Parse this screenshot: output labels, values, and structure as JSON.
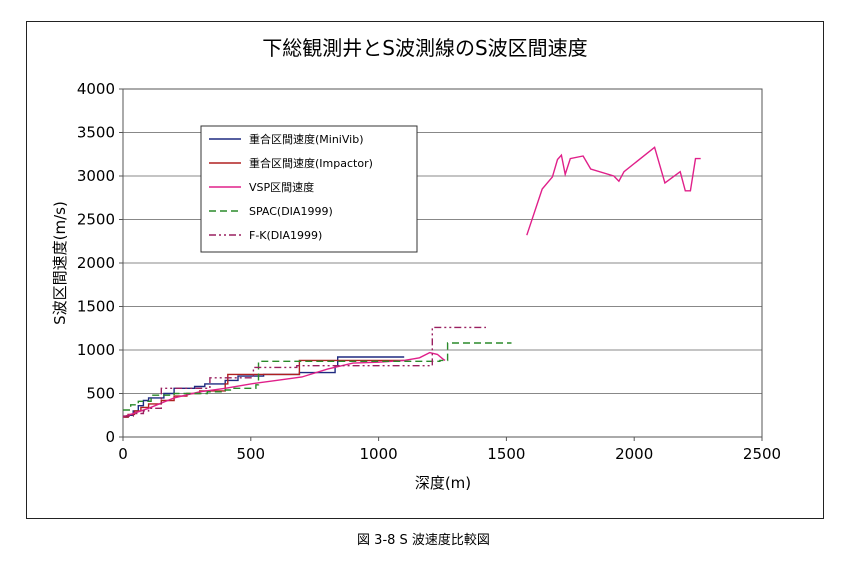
{
  "caption": "図 3-8 S 波速度比較図",
  "chart_data": {
    "type": "line",
    "title": "下総観測井とS波測線のS波区間速度",
    "xlabel": "深度(m)",
    "ylabel": "S波区間速度(m/s)",
    "xlim": [
      0,
      2500
    ],
    "ylim": [
      0,
      4000
    ],
    "xticks": [
      0,
      500,
      1000,
      1500,
      2000,
      2500
    ],
    "yticks": [
      0,
      500,
      1000,
      1500,
      2000,
      2500,
      3000,
      3500,
      4000
    ],
    "grid": "horizontal",
    "legend_placement": "upper-left",
    "series": [
      {
        "name": "重合区間速度(MiniVib)",
        "color": "#1f2a80",
        "dash": "solid",
        "step": true,
        "points": [
          [
            0,
            230
          ],
          [
            20,
            250
          ],
          [
            40,
            300
          ],
          [
            60,
            360
          ],
          [
            80,
            420
          ],
          [
            100,
            450
          ],
          [
            160,
            500
          ],
          [
            200,
            560
          ],
          [
            280,
            580
          ],
          [
            320,
            610
          ],
          [
            400,
            650
          ],
          [
            450,
            700
          ],
          [
            550,
            720
          ],
          [
            690,
            740
          ],
          [
            830,
            820
          ],
          [
            840,
            920
          ],
          [
            1100,
            920
          ]
        ]
      },
      {
        "name": "重合区間速度(Impactor)",
        "color": "#b02020",
        "dash": "solid",
        "step": true,
        "points": [
          [
            0,
            230
          ],
          [
            20,
            260
          ],
          [
            45,
            300
          ],
          [
            70,
            340
          ],
          [
            100,
            380
          ],
          [
            150,
            420
          ],
          [
            200,
            470
          ],
          [
            250,
            500
          ],
          [
            300,
            530
          ],
          [
            400,
            610
          ],
          [
            410,
            720
          ],
          [
            540,
            720
          ],
          [
            680,
            720
          ],
          [
            690,
            880
          ],
          [
            850,
            880
          ],
          [
            1000,
            880
          ],
          [
            1100,
            880
          ]
        ]
      },
      {
        "name": "VSP区間速度",
        "color": "#e0208a",
        "dash": "solid",
        "step": false,
        "points": [
          [
            0,
            230
          ],
          [
            100,
            330
          ],
          [
            200,
            450
          ],
          [
            300,
            520
          ],
          [
            400,
            560
          ],
          [
            500,
            610
          ],
          [
            600,
            650
          ],
          [
            700,
            690
          ],
          [
            800,
            780
          ],
          [
            900,
            850
          ],
          [
            1000,
            860
          ],
          [
            1100,
            880
          ],
          [
            1160,
            910
          ],
          [
            1200,
            970
          ],
          [
            1230,
            950
          ],
          [
            1250,
            900
          ],
          [
            1260,
            880
          ]
        ],
        "points2": [
          [
            1580,
            2320
          ],
          [
            1640,
            2850
          ],
          [
            1680,
            2990
          ],
          [
            1700,
            3190
          ],
          [
            1715,
            3240
          ],
          [
            1730,
            3020
          ],
          [
            1750,
            3200
          ],
          [
            1800,
            3230
          ],
          [
            1830,
            3080
          ],
          [
            1920,
            3000
          ],
          [
            1940,
            2940
          ],
          [
            1960,
            3050
          ],
          [
            2080,
            3330
          ],
          [
            2120,
            2920
          ],
          [
            2180,
            3050
          ],
          [
            2200,
            2830
          ],
          [
            2220,
            2830
          ],
          [
            2240,
            3200
          ],
          [
            2260,
            3200
          ]
        ]
      },
      {
        "name": "SPAC(DIA1999)",
        "color": "#2a8a2a",
        "dash": "7,4",
        "step": true,
        "points": [
          [
            0,
            310
          ],
          [
            30,
            370
          ],
          [
            60,
            410
          ],
          [
            110,
            480
          ],
          [
            200,
            500
          ],
          [
            330,
            520
          ],
          [
            400,
            540
          ],
          [
            420,
            560
          ],
          [
            520,
            600
          ],
          [
            530,
            870
          ],
          [
            800,
            870
          ],
          [
            1240,
            880
          ],
          [
            1270,
            1080
          ],
          [
            1520,
            1080
          ]
        ]
      },
      {
        "name": "F-K(DIA1999)",
        "color": "#9a2060",
        "dash": "7,3,2,3,2,3",
        "step": true,
        "points": [
          [
            0,
            240
          ],
          [
            40,
            270
          ],
          [
            80,
            300
          ],
          [
            100,
            330
          ],
          [
            150,
            560
          ],
          [
            280,
            560
          ],
          [
            340,
            680
          ],
          [
            500,
            680
          ],
          [
            510,
            800
          ],
          [
            680,
            820
          ],
          [
            1000,
            820
          ],
          [
            1200,
            820
          ],
          [
            1210,
            1260
          ],
          [
            1420,
            1260
          ]
        ]
      }
    ]
  }
}
